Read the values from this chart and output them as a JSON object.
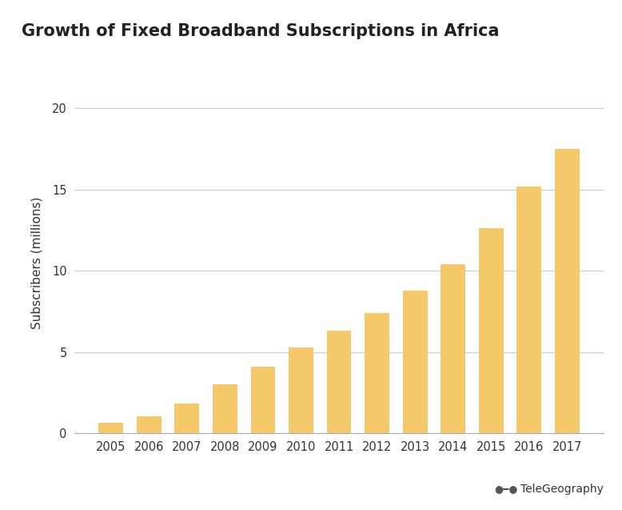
{
  "title": "Growth of Fixed Broadband Subscriptions in Africa",
  "years": [
    2005,
    2006,
    2007,
    2008,
    2009,
    2010,
    2011,
    2012,
    2013,
    2014,
    2015,
    2016,
    2017
  ],
  "values": [
    0.65,
    1.05,
    1.85,
    3.0,
    4.1,
    5.3,
    6.3,
    7.4,
    8.8,
    10.4,
    12.6,
    15.2,
    17.5
  ],
  "bar_color": "#F5C96A",
  "bar_edgecolor": "none",
  "ylabel": "Subscribers (millions)",
  "ylim": [
    0,
    21
  ],
  "yticks": [
    0,
    5,
    10,
    15,
    20
  ],
  "grid_color": "#CCCCCC",
  "bg_color": "#FFFFFF",
  "title_fontsize": 15,
  "axis_fontsize": 11,
  "tick_fontsize": 10.5,
  "watermark": "TeleGeography"
}
